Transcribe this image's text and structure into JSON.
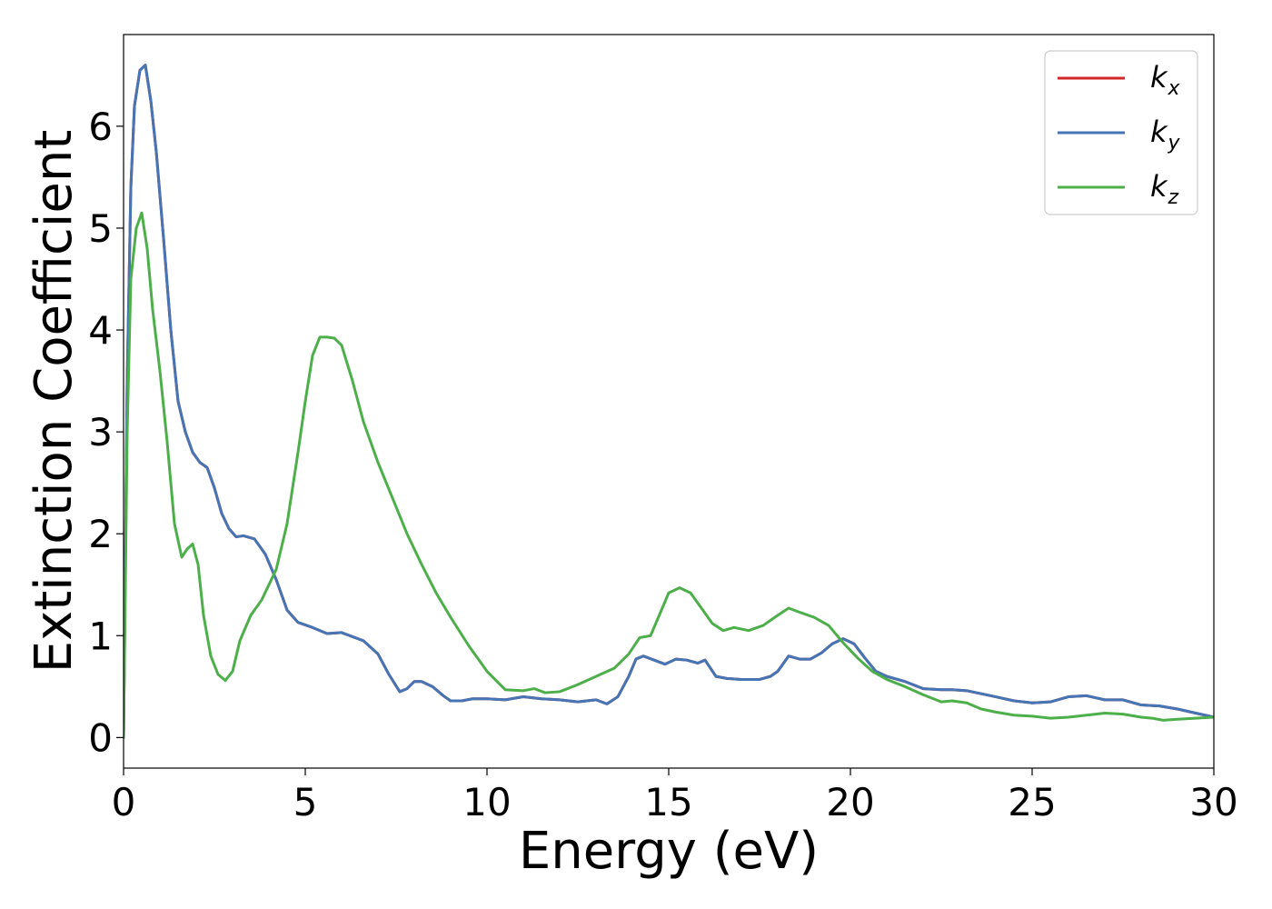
{
  "chart_data": {
    "type": "line",
    "title": "",
    "xlabel": "Energy (eV)",
    "ylabel": "Extinction Coefficient",
    "xlim": [
      0,
      30
    ],
    "ylim": [
      -0.3,
      6.9
    ],
    "xticks": [
      0,
      5,
      10,
      15,
      20,
      25,
      30
    ],
    "yticks": [
      0,
      1,
      2,
      3,
      4,
      5,
      6
    ],
    "grid": false,
    "legend_position": "top-right",
    "series": [
      {
        "name": "k",
        "subscript": "x",
        "color": "#d62728",
        "x": [
          0,
          0.1,
          0.2,
          0.3,
          0.45,
          0.6,
          0.75,
          0.9,
          1.1,
          1.3,
          1.5,
          1.7,
          1.9,
          2.1,
          2.3,
          2.5,
          2.7,
          2.9,
          3.1,
          3.3,
          3.6,
          3.9,
          4.2,
          4.5,
          4.8,
          5.2,
          5.6,
          6.0,
          6.3,
          6.6,
          7.0,
          7.3,
          7.6,
          7.8,
          8.0,
          8.2,
          8.5,
          8.8,
          9.0,
          9.3,
          9.6,
          10.0,
          10.5,
          11.0,
          11.5,
          12.0,
          12.5,
          13.0,
          13.3,
          13.6,
          13.9,
          14.1,
          14.3,
          14.6,
          14.9,
          15.2,
          15.5,
          15.8,
          16.0,
          16.3,
          16.6,
          17.0,
          17.5,
          17.8,
          18.0,
          18.3,
          18.6,
          18.9,
          19.2,
          19.5,
          19.8,
          20.1,
          20.4,
          20.7,
          21.0,
          21.5,
          22.0,
          22.5,
          22.8,
          23.2,
          23.6,
          24.0,
          24.5,
          25.0,
          25.5,
          26.0,
          26.5,
          27.0,
          27.5,
          28.0,
          28.5,
          29.0,
          29.5,
          30.0
        ],
        "values": [
          0.0,
          3.5,
          5.4,
          6.2,
          6.55,
          6.6,
          6.25,
          5.75,
          4.9,
          4.0,
          3.3,
          3.0,
          2.8,
          2.7,
          2.65,
          2.45,
          2.2,
          2.05,
          1.97,
          1.98,
          1.95,
          1.8,
          1.55,
          1.25,
          1.13,
          1.08,
          1.02,
          1.03,
          0.99,
          0.95,
          0.82,
          0.62,
          0.45,
          0.48,
          0.55,
          0.55,
          0.5,
          0.41,
          0.36,
          0.36,
          0.38,
          0.38,
          0.37,
          0.4,
          0.38,
          0.37,
          0.35,
          0.37,
          0.33,
          0.4,
          0.6,
          0.77,
          0.8,
          0.76,
          0.72,
          0.77,
          0.76,
          0.73,
          0.76,
          0.6,
          0.58,
          0.57,
          0.57,
          0.6,
          0.65,
          0.8,
          0.77,
          0.77,
          0.83,
          0.92,
          0.97,
          0.92,
          0.78,
          0.65,
          0.6,
          0.55,
          0.48,
          0.47,
          0.47,
          0.46,
          0.43,
          0.4,
          0.36,
          0.34,
          0.35,
          0.4,
          0.41,
          0.37,
          0.37,
          0.32,
          0.31,
          0.28,
          0.24,
          0.2
        ]
      },
      {
        "name": "k",
        "subscript": "y",
        "color": "#4575b4",
        "x": [
          0,
          0.1,
          0.2,
          0.3,
          0.45,
          0.6,
          0.75,
          0.9,
          1.1,
          1.3,
          1.5,
          1.7,
          1.9,
          2.1,
          2.3,
          2.5,
          2.7,
          2.9,
          3.1,
          3.3,
          3.6,
          3.9,
          4.2,
          4.5,
          4.8,
          5.2,
          5.6,
          6.0,
          6.3,
          6.6,
          7.0,
          7.3,
          7.6,
          7.8,
          8.0,
          8.2,
          8.5,
          8.8,
          9.0,
          9.3,
          9.6,
          10.0,
          10.5,
          11.0,
          11.5,
          12.0,
          12.5,
          13.0,
          13.3,
          13.6,
          13.9,
          14.1,
          14.3,
          14.6,
          14.9,
          15.2,
          15.5,
          15.8,
          16.0,
          16.3,
          16.6,
          17.0,
          17.5,
          17.8,
          18.0,
          18.3,
          18.6,
          18.9,
          19.2,
          19.5,
          19.8,
          20.1,
          20.4,
          20.7,
          21.0,
          21.5,
          22.0,
          22.5,
          22.8,
          23.2,
          23.6,
          24.0,
          24.5,
          25.0,
          25.5,
          26.0,
          26.5,
          27.0,
          27.5,
          28.0,
          28.5,
          29.0,
          29.5,
          30.0
        ],
        "values": [
          0.0,
          3.5,
          5.4,
          6.2,
          6.55,
          6.6,
          6.25,
          5.75,
          4.9,
          4.0,
          3.3,
          3.0,
          2.8,
          2.7,
          2.65,
          2.45,
          2.2,
          2.05,
          1.97,
          1.98,
          1.95,
          1.8,
          1.55,
          1.25,
          1.13,
          1.08,
          1.02,
          1.03,
          0.99,
          0.95,
          0.82,
          0.62,
          0.45,
          0.48,
          0.55,
          0.55,
          0.5,
          0.41,
          0.36,
          0.36,
          0.38,
          0.38,
          0.37,
          0.4,
          0.38,
          0.37,
          0.35,
          0.37,
          0.33,
          0.4,
          0.6,
          0.77,
          0.8,
          0.76,
          0.72,
          0.77,
          0.76,
          0.73,
          0.76,
          0.6,
          0.58,
          0.57,
          0.57,
          0.6,
          0.65,
          0.8,
          0.77,
          0.77,
          0.83,
          0.92,
          0.97,
          0.92,
          0.78,
          0.65,
          0.6,
          0.55,
          0.48,
          0.47,
          0.47,
          0.46,
          0.43,
          0.4,
          0.36,
          0.34,
          0.35,
          0.4,
          0.41,
          0.37,
          0.37,
          0.32,
          0.31,
          0.28,
          0.24,
          0.2
        ]
      },
      {
        "name": "k",
        "subscript": "z",
        "color": "#4daf4a",
        "x": [
          0,
          0.1,
          0.2,
          0.35,
          0.5,
          0.65,
          0.8,
          1.0,
          1.2,
          1.4,
          1.6,
          1.75,
          1.9,
          2.05,
          2.2,
          2.4,
          2.6,
          2.8,
          3.0,
          3.2,
          3.5,
          3.8,
          4.2,
          4.5,
          4.8,
          5.0,
          5.2,
          5.4,
          5.6,
          5.8,
          6.0,
          6.3,
          6.6,
          7.0,
          7.4,
          7.8,
          8.2,
          8.6,
          9.0,
          9.5,
          10.0,
          10.5,
          11.0,
          11.3,
          11.6,
          12.0,
          12.5,
          13.0,
          13.5,
          13.9,
          14.2,
          14.5,
          14.8,
          15.0,
          15.3,
          15.6,
          15.9,
          16.2,
          16.5,
          16.8,
          17.2,
          17.6,
          18.0,
          18.3,
          18.6,
          19.0,
          19.4,
          19.8,
          20.2,
          20.6,
          21.0,
          21.5,
          22.0,
          22.5,
          22.8,
          23.2,
          23.6,
          24.0,
          24.5,
          25.0,
          25.5,
          26.0,
          26.5,
          27.0,
          27.5,
          28.0,
          28.3,
          28.6,
          29.0,
          29.5,
          30.0
        ],
        "values": [
          0.0,
          3.0,
          4.5,
          5.0,
          5.15,
          4.8,
          4.2,
          3.6,
          2.9,
          2.1,
          1.77,
          1.85,
          1.9,
          1.7,
          1.2,
          0.8,
          0.62,
          0.56,
          0.65,
          0.95,
          1.2,
          1.35,
          1.65,
          2.1,
          2.8,
          3.3,
          3.75,
          3.93,
          3.93,
          3.92,
          3.85,
          3.5,
          3.1,
          2.7,
          2.35,
          2.0,
          1.7,
          1.42,
          1.18,
          0.9,
          0.65,
          0.47,
          0.46,
          0.48,
          0.44,
          0.45,
          0.52,
          0.6,
          0.68,
          0.82,
          0.98,
          1.0,
          1.25,
          1.42,
          1.47,
          1.42,
          1.27,
          1.12,
          1.05,
          1.08,
          1.05,
          1.1,
          1.2,
          1.27,
          1.23,
          1.18,
          1.1,
          0.93,
          0.78,
          0.65,
          0.57,
          0.5,
          0.42,
          0.35,
          0.36,
          0.34,
          0.28,
          0.25,
          0.22,
          0.21,
          0.19,
          0.2,
          0.22,
          0.24,
          0.23,
          0.2,
          0.19,
          0.17,
          0.18,
          0.19,
          0.2
        ]
      }
    ]
  }
}
